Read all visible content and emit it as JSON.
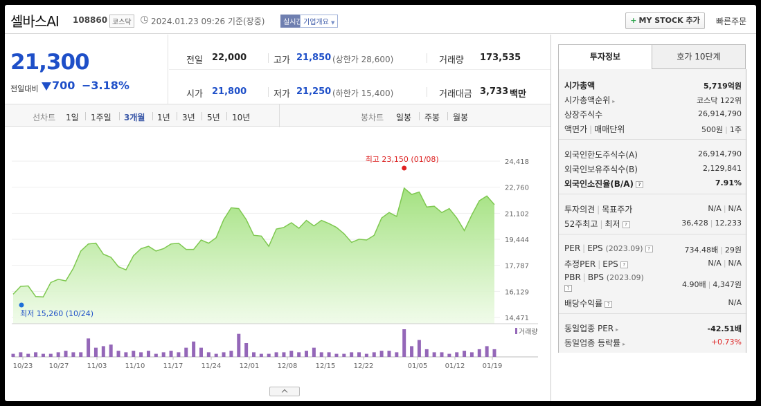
{
  "header": {
    "stock_name": "셀바스AI",
    "stock_code": "108860",
    "market": "코스닥",
    "timestamp": "2024.01.23 09:26 기준(장중)",
    "realtime": "실시간",
    "company_overview": "기업개요",
    "mystock_plus": "+",
    "mystock_label": "MY STOCK 추가",
    "quick_order": "빠른주문"
  },
  "price": {
    "current": "21,300",
    "change_label": "전일대비",
    "change_value": "700",
    "change_pct": "−3.18%",
    "color": "#1e4fc8"
  },
  "stats": {
    "prev_close_label": "전일",
    "prev_close": "22,000",
    "high_label": "고가",
    "high": "21,850",
    "upper_limit": "(상한가 28,600)",
    "volume_label": "거래량",
    "volume": "173,535",
    "open_label": "시가",
    "open": "21,800",
    "low_label": "저가",
    "low": "21,250",
    "lower_limit": "(하한가 15,400)",
    "value_label": "거래대금",
    "value": "3,733",
    "value_unit": "백만"
  },
  "chart_tools": {
    "line_label": "선차트",
    "periods": [
      "1일",
      "1주일",
      "3개월",
      "1년",
      "3년",
      "5년",
      "10년"
    ],
    "active_period": "3개월",
    "candle_label": "봉차트",
    "candles": [
      "일봉",
      "주봉",
      "월봉"
    ]
  },
  "chart_data": {
    "type": "area",
    "yticks": [
      "24,418",
      "22,760",
      "21,102",
      "19,444",
      "17,787",
      "16,129",
      "14,471"
    ],
    "ylim": [
      14471,
      24418
    ],
    "xticks": [
      "10/23",
      "10/27",
      "11/03",
      "11/10",
      "11/17",
      "11/24",
      "12/01",
      "12/08",
      "12/15",
      "12/22",
      "01/05",
      "01/12",
      "01/19"
    ],
    "high_annotation": "최고 23,150 (01/08)",
    "low_annotation": "최저 15,260 (10/24)",
    "volume_legend": "거래량",
    "price_series": [
      15950,
      16450,
      16480,
      15800,
      15780,
      16700,
      16900,
      16800,
      17600,
      18700,
      19150,
      19200,
      18500,
      18300,
      17700,
      17500,
      18400,
      18850,
      19000,
      18700,
      18850,
      19150,
      19200,
      18800,
      18800,
      19400,
      19200,
      19550,
      20700,
      21450,
      21400,
      20700,
      19700,
      19650,
      19000,
      20100,
      20200,
      20500,
      20150,
      20650,
      20300,
      20650,
      20450,
      20200,
      19800,
      19250,
      19450,
      19400,
      19700,
      20800,
      21150,
      20900,
      22700,
      22300,
      22450,
      21500,
      21550,
      21150,
      21400,
      20800,
      20000,
      21000,
      21900,
      22200,
      21650
    ],
    "volume_series": [
      2,
      3,
      2,
      3,
      2,
      2,
      3,
      4,
      3,
      3,
      12,
      6,
      7,
      8,
      4,
      3,
      4,
      3,
      4,
      2,
      3,
      4,
      3,
      6,
      10,
      6,
      3,
      2,
      3,
      4,
      15,
      9,
      3,
      2,
      2,
      3,
      3,
      4,
      3,
      4,
      6,
      3,
      3,
      2,
      2,
      3,
      3,
      2,
      3,
      4,
      4,
      3,
      18,
      7,
      11,
      5,
      3,
      3,
      2,
      3,
      4,
      3,
      5,
      7,
      5
    ],
    "line_color": "#7ec850",
    "volume_color": "#9467b8"
  },
  "right_panel": {
    "tab_invest": "투자정보",
    "tab_hoga": "호가 10단계",
    "rows": {
      "mktcap_l": "시가총액",
      "mktcap_r": "5,719억원",
      "rank_l": "시가총액순위",
      "rank_r": "코스닥 122위",
      "shares_l": "상장주식수",
      "shares_r": "26,914,790",
      "face_l1": "액면가",
      "face_l2": "매매단위",
      "face_r1": "500원",
      "face_r2": "1주",
      "f_limit_l": "외국인한도주식수(A)",
      "f_limit_r": "26,914,790",
      "f_hold_l": "외국인보유주식수(B)",
      "f_hold_r": "2,129,841",
      "f_ratio_l": "외국인소진율(B/A)",
      "f_ratio_r": "7.91%",
      "op_l1": "투자의견",
      "op_l2": "목표주가",
      "op_r1": "N/A",
      "op_r2": "N/A",
      "w52_l1": "52주최고",
      "w52_l2": "최저",
      "w52_r1": "36,428",
      "w52_r2": "12,233",
      "per_l1": "PER",
      "per_l2": "EPS",
      "per_l3": "(2023.09)",
      "per_r1": "734.48배",
      "per_r2": "29원",
      "eper_l1": "추정PER",
      "eper_l2": "EPS",
      "eper_r1": "N/A",
      "eper_r2": "N/A",
      "pbr_l1": "PBR",
      "pbr_l2": "BPS",
      "pbr_l3": "(2023.09)",
      "pbr_r1": "4.90배",
      "pbr_r2": "4,347원",
      "div_l": "배당수익률",
      "div_r": "N/A",
      "sper_l": "동일업종 PER",
      "sper_r": "-42.51배",
      "srate_l": "동일업종 등락률",
      "srate_r": "+0.73%"
    }
  }
}
